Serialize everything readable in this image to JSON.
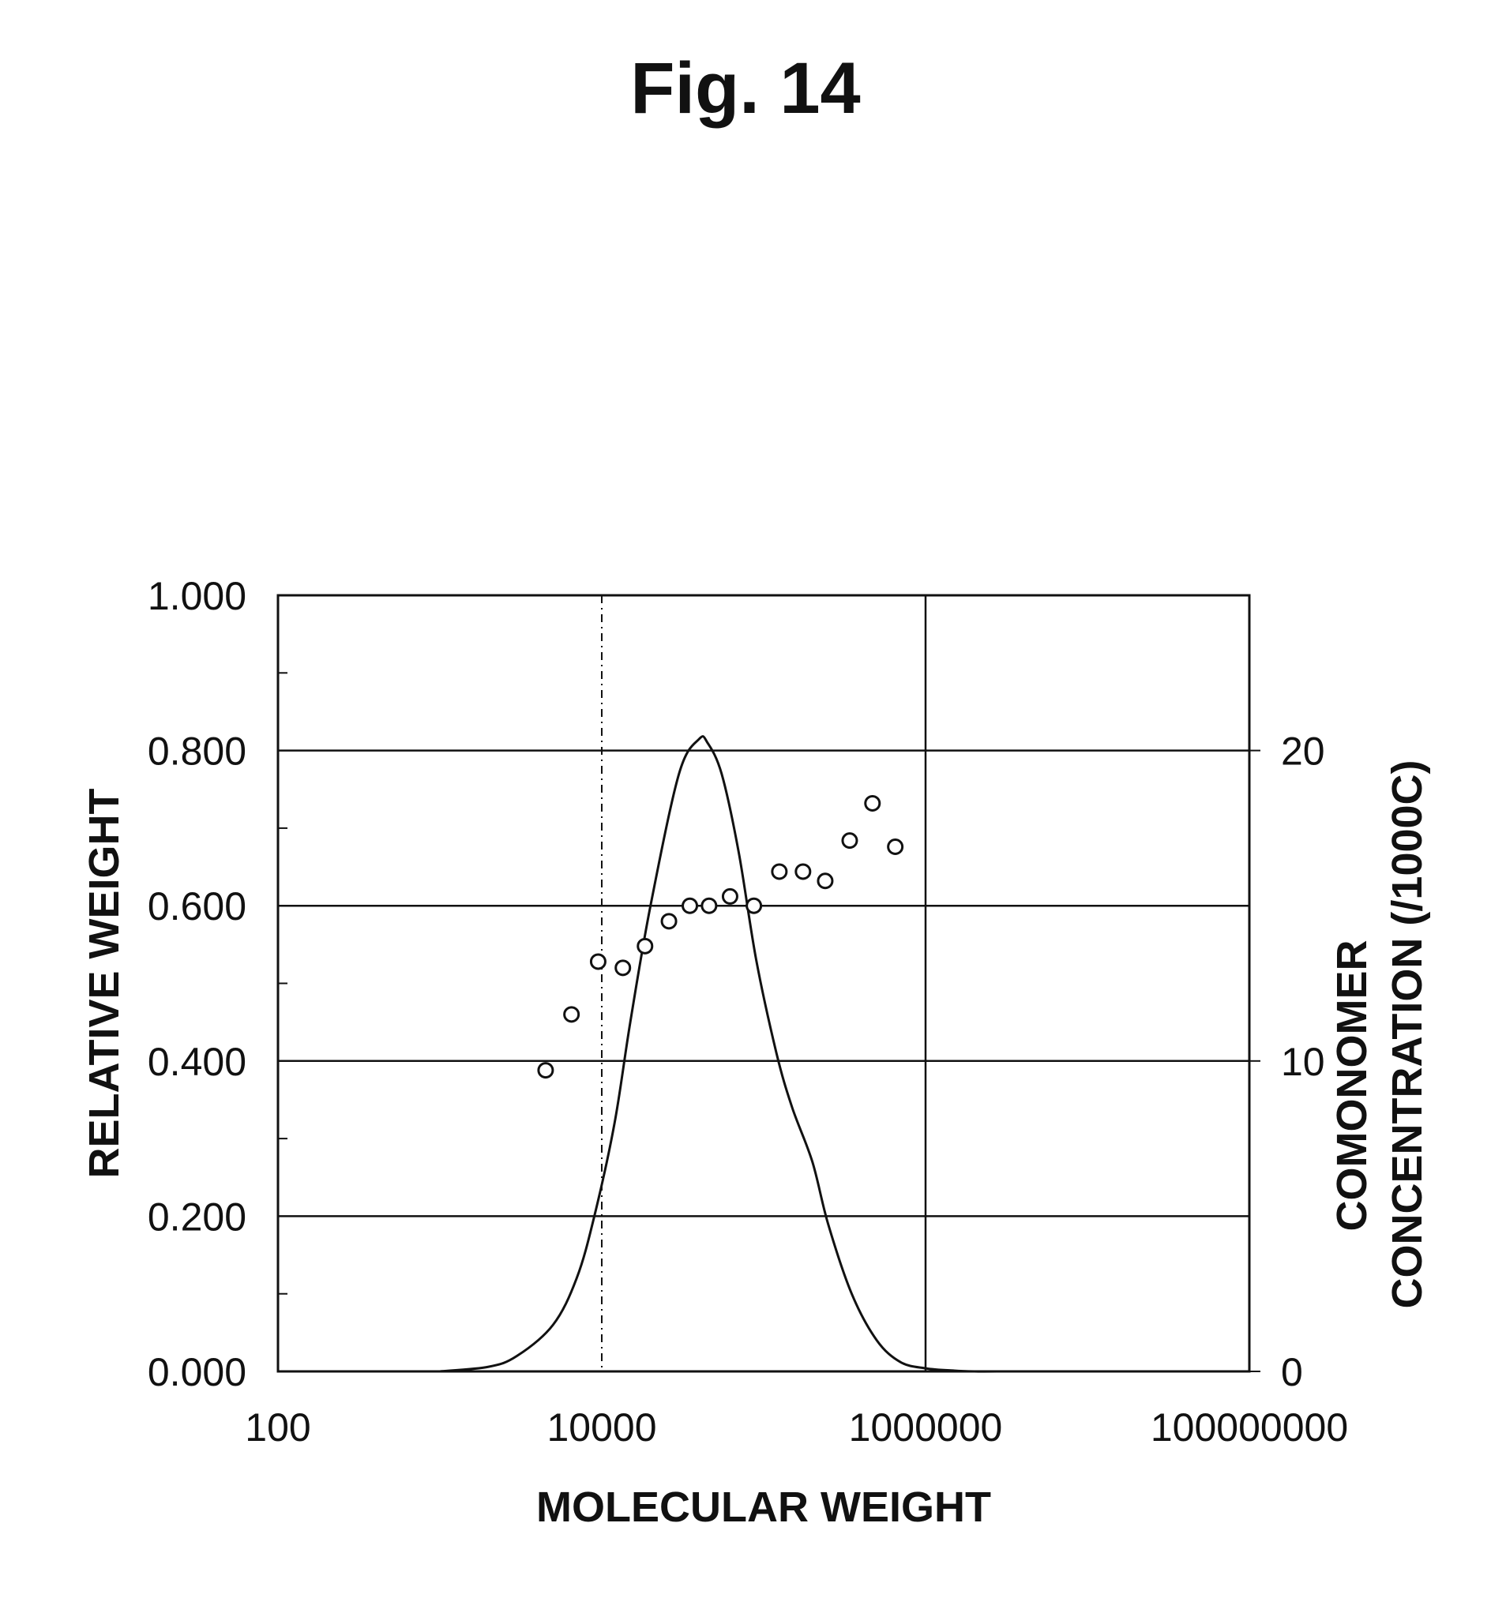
{
  "figure_label": "Fig. 14",
  "chart_data": {
    "type": "line",
    "xlabel": "MOLECULAR WEIGHT",
    "ylabel": "RELATIVE WEIGHT",
    "y2label_lines": [
      "COMONOMER",
      "CONCENTRATION (/1000C)"
    ],
    "x_scale": "log",
    "xlim": [
      100,
      100000000
    ],
    "x_ticks": [
      100,
      10000,
      1000000,
      100000000
    ],
    "x_tick_labels": [
      "100",
      "10000",
      "1000000",
      "100000000"
    ],
    "ylim": [
      0,
      1.0
    ],
    "y_ticks": [
      0,
      0.2,
      0.4,
      0.6,
      0.8,
      1.0
    ],
    "y_tick_labels": [
      "0.000",
      "0.200",
      "0.400",
      "0.600",
      "0.800",
      "1.000"
    ],
    "y2lim": [
      0,
      25
    ],
    "y2_ticks": [
      0,
      10,
      20
    ],
    "y2_tick_labels": [
      "0",
      "10",
      "20"
    ],
    "grid": "horizontal",
    "reference_lines_x": [
      {
        "x": 10000,
        "style": "dashed"
      },
      {
        "x": 1000000,
        "style": "solid"
      }
    ],
    "series": [
      {
        "type": "line",
        "axis": "left",
        "x": [
          1000,
          2000,
          3000,
          5000,
          7000,
          9000,
          12000,
          15000,
          20000,
          30000,
          40000,
          45000,
          55000,
          70000,
          90000,
          120000,
          150000,
          200000,
          250000,
          350000,
          500000,
          700000,
          1000000,
          1500000,
          2000000,
          3000000
        ],
        "y": [
          0.0,
          0.006,
          0.02,
          0.06,
          0.12,
          0.2,
          0.32,
          0.45,
          0.6,
          0.77,
          0.815,
          0.81,
          0.77,
          0.67,
          0.53,
          0.41,
          0.34,
          0.27,
          0.19,
          0.1,
          0.04,
          0.012,
          0.004,
          0.001,
          0.0,
          0.0
        ]
      },
      {
        "type": "scatter",
        "axis": "right",
        "marker": "open-circle",
        "x": [
          4500,
          6500,
          9500,
          13500,
          18500,
          26000,
          35000,
          46000,
          62000,
          87000,
          125000,
          175000,
          240000,
          340000,
          470000,
          650000
        ],
        "y": [
          9.7,
          11.5,
          13.2,
          13.0,
          13.7,
          14.5,
          15.0,
          15.0,
          15.3,
          15.0,
          16.1,
          16.1,
          15.8,
          17.1,
          18.3,
          16.9
        ]
      }
    ]
  }
}
